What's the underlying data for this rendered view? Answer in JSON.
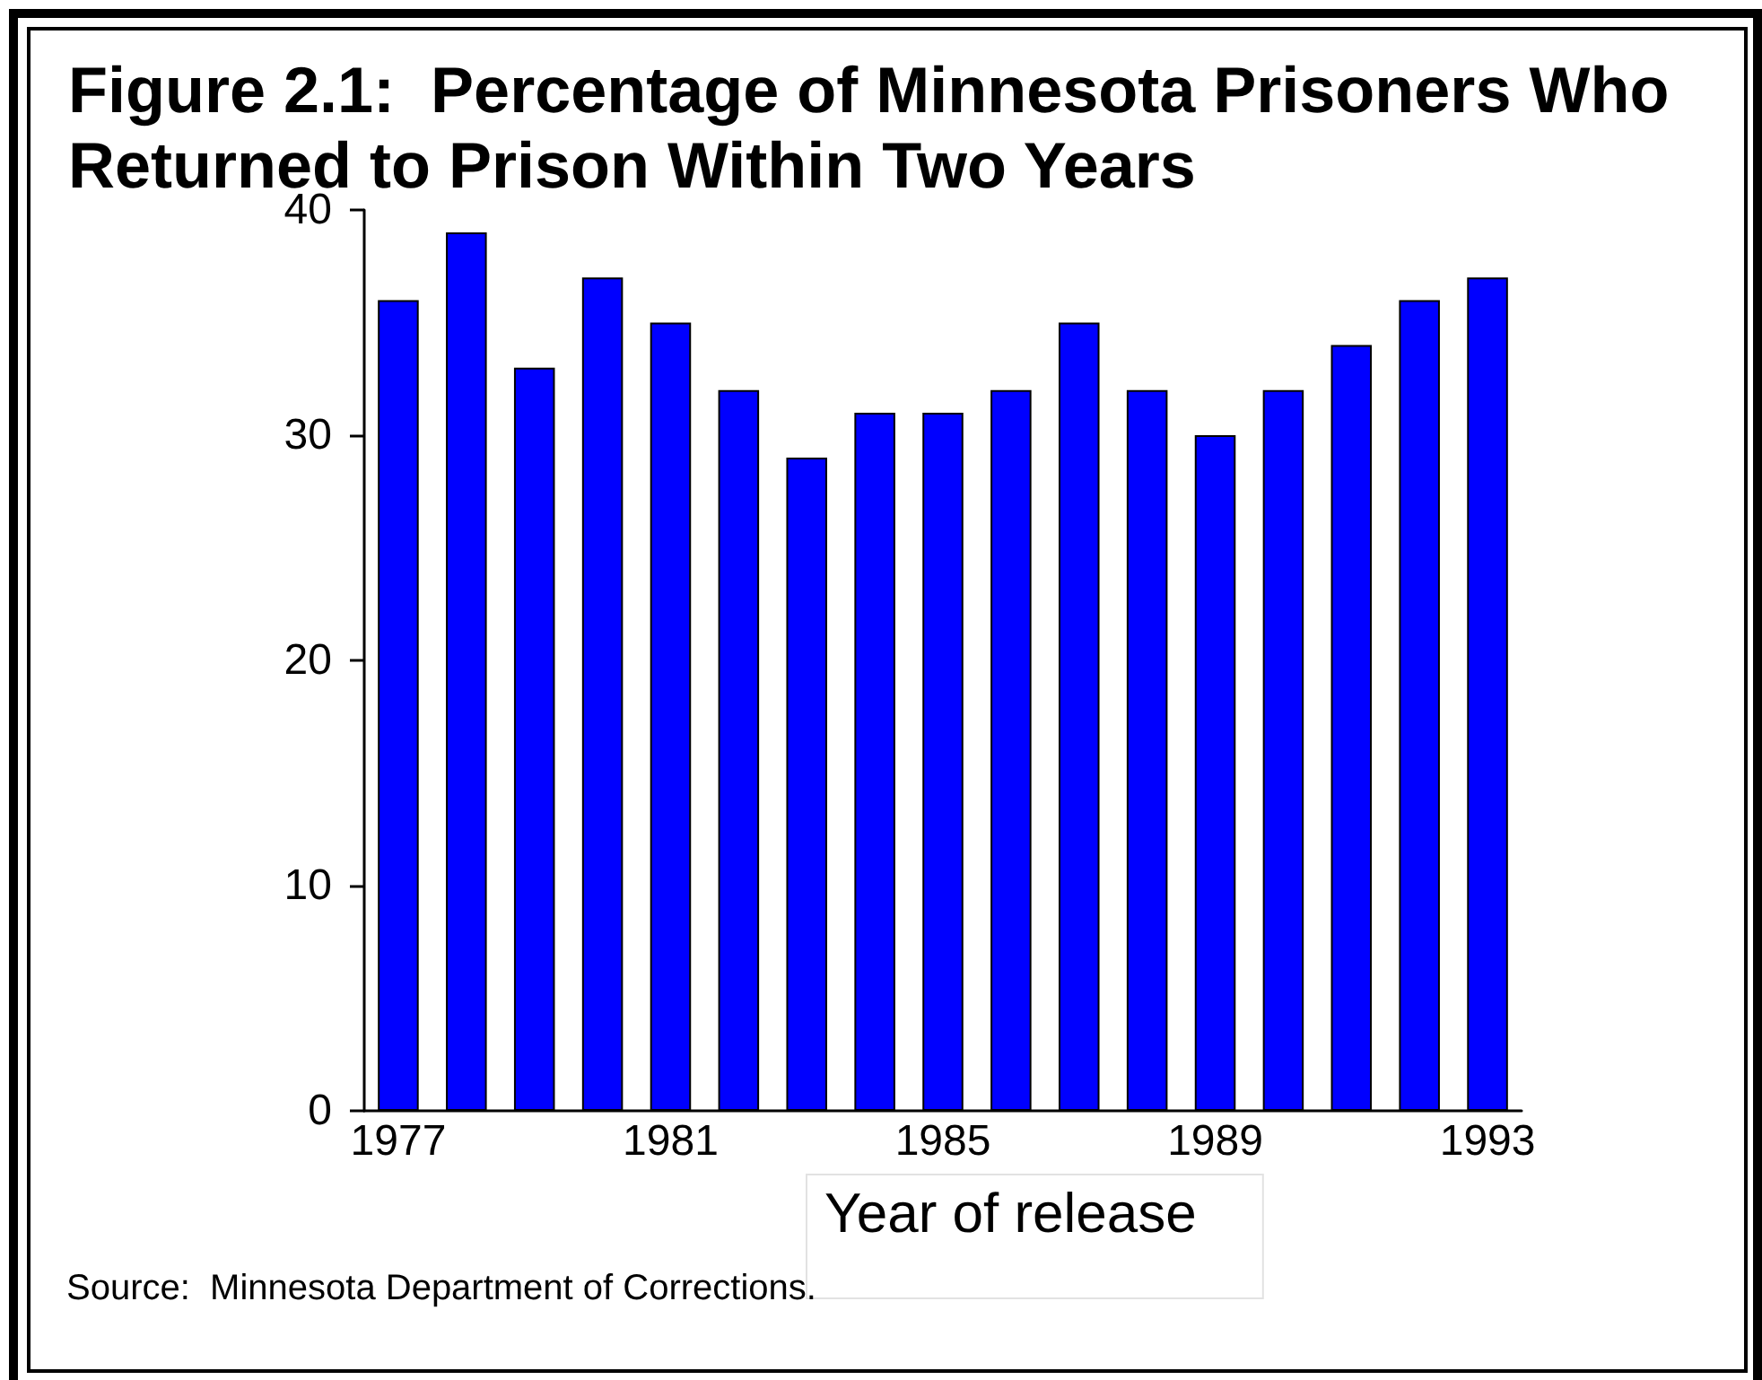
{
  "chart_data": {
    "type": "bar",
    "title": "Figure 2.1:  Percentage of Minnesota Prisoners Who Returned to Prison Within Two Years",
    "xlabel": "Year of release",
    "annotations": [
      "Source:  Minnesota Department of Corrections."
    ],
    "categories": [
      "1977",
      null,
      null,
      null,
      "1981",
      null,
      null,
      null,
      "1985",
      null,
      null,
      null,
      "1989",
      null,
      null,
      null,
      "1993"
    ],
    "values": [
      36,
      39,
      33,
      37,
      35,
      32,
      29,
      31,
      31,
      32,
      35,
      32,
      30,
      32,
      34,
      36,
      37
    ],
    "color": "#0000ff",
    "ylim": [
      0,
      40
    ],
    "yticks": [
      0,
      10,
      20,
      30,
      40
    ]
  }
}
